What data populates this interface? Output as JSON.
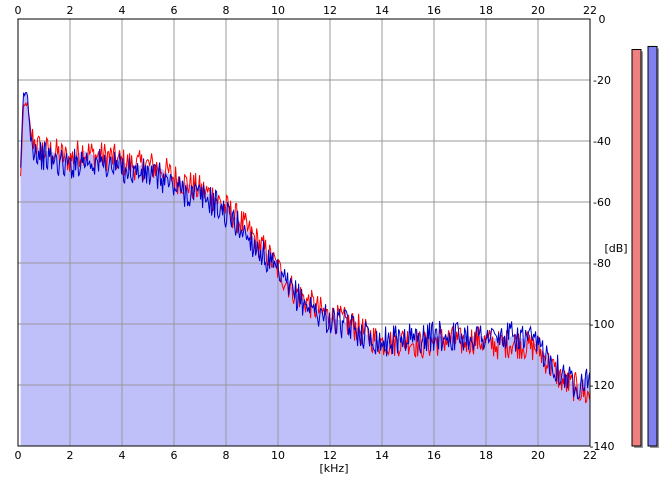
{
  "chart_data": {
    "type": "area",
    "title": "",
    "xlabel": "[kHz]",
    "ylabel": "[dB]",
    "xlim": [
      0,
      22
    ],
    "ylim": [
      -140,
      0
    ],
    "x_ticks": [
      "0",
      "2",
      "4",
      "6",
      "8",
      "10",
      "12",
      "14",
      "16",
      "18",
      "20",
      "22"
    ],
    "y_ticks": [
      "0",
      "-20",
      "-40",
      "-60",
      "-80",
      "-100",
      "-120",
      "-140"
    ],
    "grid": true,
    "legend": "none",
    "series": [
      {
        "color": "#ff0000",
        "x": [
          0.1,
          0.2,
          0.35,
          0.5,
          0.75,
          1,
          1.5,
          2,
          2.5,
          3,
          3.5,
          4,
          4.5,
          5,
          5.5,
          6,
          6.5,
          7,
          7.5,
          8,
          8.5,
          9,
          9.5,
          10,
          10.5,
          11,
          11.5,
          12,
          12.5,
          13,
          13.5,
          14,
          14.5,
          15,
          15.5,
          16,
          16.5,
          17,
          17.5,
          18,
          18.5,
          19,
          19.5,
          20,
          20.5,
          21,
          21.5,
          22
        ],
        "values": [
          -52,
          -30,
          -27,
          -38,
          -42,
          -43,
          -44,
          -46,
          -43,
          -45,
          -45,
          -47,
          -48,
          -48,
          -49,
          -52,
          -54,
          -56,
          -58,
          -62,
          -66,
          -71,
          -76,
          -82,
          -88,
          -92,
          -95,
          -98,
          -99,
          -101,
          -104,
          -106,
          -106,
          -105,
          -107,
          -106,
          -105,
          -106,
          -105,
          -106,
          -107,
          -106,
          -107,
          -108,
          -114,
          -119,
          -121,
          -124
        ]
      },
      {
        "color": "#0000cc",
        "x": [
          0.1,
          0.2,
          0.35,
          0.5,
          0.75,
          1,
          1.5,
          2,
          2.5,
          3,
          3.5,
          4,
          4.5,
          5,
          5.5,
          6,
          6.5,
          7,
          7.5,
          8,
          8.5,
          9,
          9.5,
          10,
          10.5,
          11,
          11.5,
          12,
          12.5,
          13,
          13.5,
          14,
          14.5,
          15,
          15.5,
          16,
          16.5,
          17,
          17.5,
          18,
          18.5,
          19,
          19.5,
          20,
          20.5,
          21,
          21.5,
          22
        ],
        "values": [
          -50,
          -25,
          -24,
          -40,
          -44,
          -45,
          -47,
          -48,
          -46,
          -47,
          -48,
          -49,
          -50,
          -51,
          -52,
          -55,
          -57,
          -58,
          -60,
          -64,
          -68,
          -73,
          -78,
          -84,
          -89,
          -93,
          -96,
          -99,
          -100,
          -102,
          -104,
          -106,
          -105,
          -104,
          -105,
          -104,
          -104,
          -104,
          -104,
          -104,
          -105,
          -104,
          -105,
          -107,
          -112,
          -117,
          -120,
          -116
        ]
      }
    ],
    "area_fill": "#bfbffa",
    "level_meters": [
      {
        "color": "#f08080",
        "value_db": -10
      },
      {
        "color": "#8080f0",
        "value_db": -9
      }
    ]
  }
}
